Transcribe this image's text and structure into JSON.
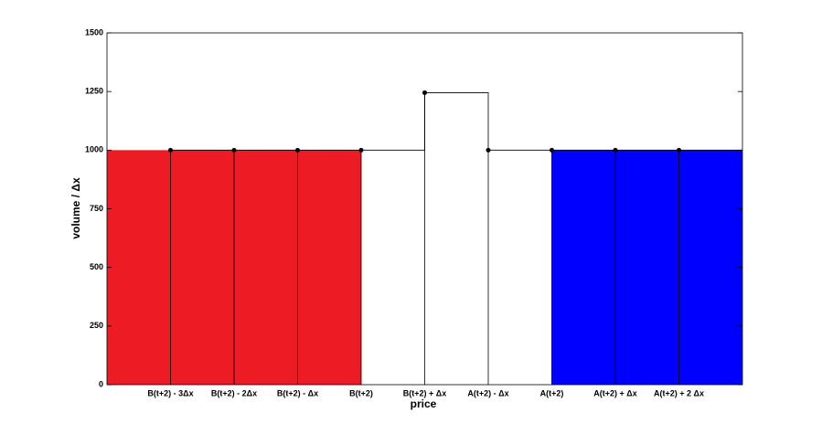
{
  "chart_data": {
    "type": "step",
    "xlabel": "price",
    "ylabel": "volume / Δx",
    "categories": [
      "B(t+2) - 3Δx",
      "B(t+2) - 2Δx",
      "B(t+2) - Δx",
      "B(t+2)",
      "B(t+2) + Δx",
      "A(t+2) - Δx",
      "A(t+2)",
      "A(t+2) + Δx",
      "A(t+2) + 2 Δx"
    ],
    "values": [
      1000,
      1000,
      1000,
      1000,
      1245,
      1000,
      1000,
      1000,
      1000
    ],
    "fill": [
      {
        "color": "#ed1c24",
        "side": "left"
      },
      {
        "color": "#ed1c24",
        "side": "left"
      },
      {
        "color": "#ed1c24",
        "side": "left"
      },
      {
        "color": "#ed1c24",
        "side": "left"
      },
      null,
      null,
      {
        "color": "#0000ff",
        "side": "right"
      },
      {
        "color": "#0000ff",
        "side": "right"
      },
      {
        "color": "#0000ff",
        "side": "right"
      }
    ],
    "line_color": "#000000",
    "ylim": [
      0,
      1500
    ],
    "yticks": [
      0,
      250,
      500,
      750,
      1000,
      1250,
      1500
    ]
  }
}
